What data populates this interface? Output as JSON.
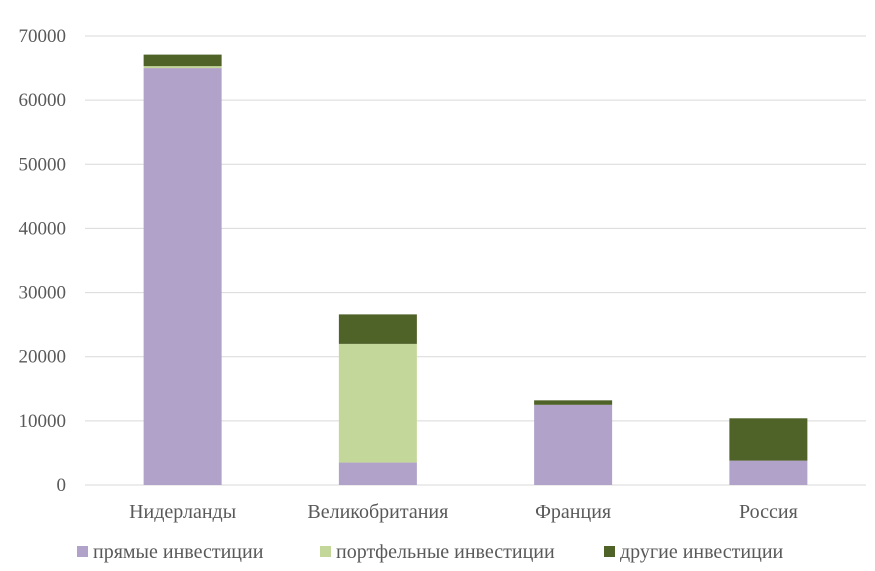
{
  "chart_data": {
    "type": "bar",
    "stacked": true,
    "categories": [
      "Нидерланды",
      "Великобритания",
      "Франция",
      "Россия"
    ],
    "series": [
      {
        "name": "прямые инвестиции",
        "color": "#b1a2c9",
        "values": [
          65000,
          3500,
          12500,
          3800
        ]
      },
      {
        "name": "портфельные инвестиции",
        "color": "#c4d79b",
        "values": [
          300,
          18500,
          0,
          0
        ]
      },
      {
        "name": "другие инвестиции",
        "color": "#4f6228",
        "values": [
          1800,
          4600,
          700,
          6600
        ]
      }
    ],
    "title": "",
    "xlabel": "",
    "ylabel": "",
    "ylim": [
      0,
      70000
    ],
    "yticks": [
      "0",
      "10000",
      "20000",
      "30000",
      "40000",
      "50000",
      "60000",
      "70000"
    ],
    "grid": true,
    "legend_position": "bottom"
  }
}
